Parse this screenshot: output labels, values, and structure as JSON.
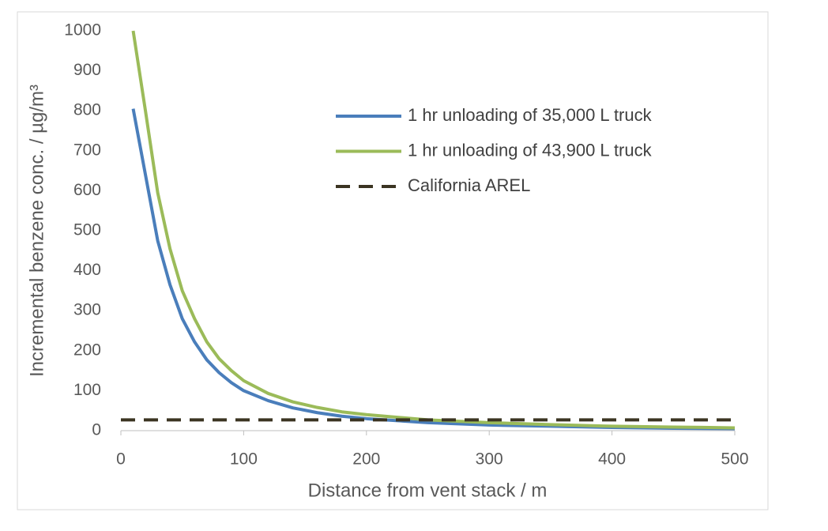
{
  "chart_data": {
    "type": "line",
    "x_label": "Distance from vent stack / m",
    "y_label": "Incremental benzene conc. / µg/m³",
    "x": [
      0,
      10,
      20,
      30,
      40,
      50,
      60,
      70,
      80,
      90,
      100,
      120,
      140,
      160,
      180,
      200,
      250,
      300,
      350,
      400,
      450,
      500
    ],
    "series": [
      {
        "name": "1 hr unloading of 35,000 L truck",
        "color": "#4a7ebb",
        "dash": false,
        "values": [
          null,
          805,
          640,
          475,
          365,
          280,
          222,
          177,
          145,
          120,
          100,
          75,
          57,
          45,
          36,
          30,
          20,
          14,
          11,
          8,
          6,
          5
        ]
      },
      {
        "name": "1 hr unloading of 43,900 L truck",
        "color": "#9bbb59",
        "dash": false,
        "values": [
          null,
          1000,
          800,
          595,
          455,
          350,
          280,
          222,
          180,
          150,
          125,
          93,
          72,
          58,
          47,
          40,
          27,
          20,
          15,
          11,
          9,
          7
        ]
      },
      {
        "name": "California AREL",
        "color": "#3b3422",
        "dash": true,
        "values": [
          27,
          27,
          27,
          27,
          27,
          27,
          27,
          27,
          27,
          27,
          27,
          27,
          27,
          27,
          27,
          27,
          27,
          27,
          27,
          27,
          27,
          27
        ]
      }
    ],
    "xlim": [
      0,
      500
    ],
    "xticks": [
      0,
      100,
      200,
      300,
      400,
      500
    ],
    "ylim": [
      0,
      1000
    ],
    "yticks": [
      0,
      100,
      200,
      300,
      400,
      500,
      600,
      700,
      800,
      900,
      1000
    ],
    "grid": false,
    "legend": "upper right"
  }
}
